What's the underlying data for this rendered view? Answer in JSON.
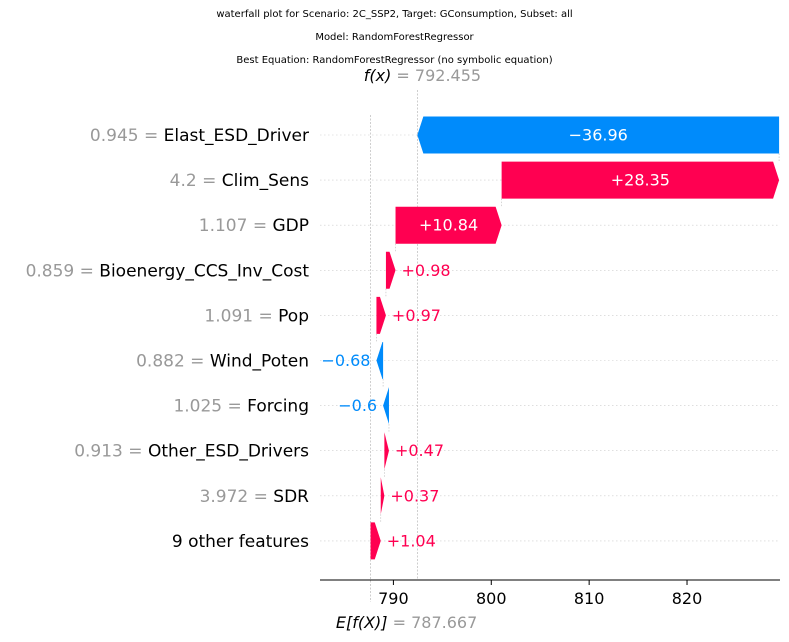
{
  "titles": [
    "waterfall plot for Scenario: 2C_SSP2, Target: GConsumption, Subset: all",
    "Model: RandomForestRegressor",
    "Best Equation: RandomForestRegressor (no symbolic equation)"
  ],
  "chart_data": {
    "type": "waterfall",
    "fx_label": "f(x)",
    "fx_value": "792.455",
    "base_label": "E[f(X)]",
    "base_value_text": "787.667",
    "base_value": 787.667,
    "final_value": 792.455,
    "xlim": [
      782.5,
      829.5
    ],
    "xticks": [
      790,
      800,
      810,
      820
    ],
    "colors": {
      "positive": "#ff0051",
      "negative": "#008bfb",
      "feature_value": "#999999"
    },
    "features": [
      {
        "value": "0.945",
        "name": "Elast_ESD_Driver",
        "contribution": -36.96,
        "label": "−36.96"
      },
      {
        "value": "4.2",
        "name": "Clim_Sens",
        "contribution": 28.35,
        "label": "+28.35"
      },
      {
        "value": "1.107",
        "name": "GDP",
        "contribution": 10.84,
        "label": "+10.84"
      },
      {
        "value": "0.859",
        "name": "Bioenergy_CCS_Inv_Cost",
        "contribution": 0.98,
        "label": "+0.98"
      },
      {
        "value": "1.091",
        "name": "Pop",
        "contribution": 0.97,
        "label": "+0.97"
      },
      {
        "value": "0.882",
        "name": "Wind_Poten",
        "contribution": -0.68,
        "label": "−0.68"
      },
      {
        "value": "1.025",
        "name": "Forcing",
        "contribution": -0.6,
        "label": "−0.6"
      },
      {
        "value": "0.913",
        "name": "Other_ESD_Drivers",
        "contribution": 0.47,
        "label": "+0.47"
      },
      {
        "value": "3.972",
        "name": "SDR",
        "contribution": 0.37,
        "label": "+0.37"
      },
      {
        "value": "",
        "name": "9 other features",
        "contribution": 1.04,
        "label": "+1.04"
      }
    ]
  }
}
